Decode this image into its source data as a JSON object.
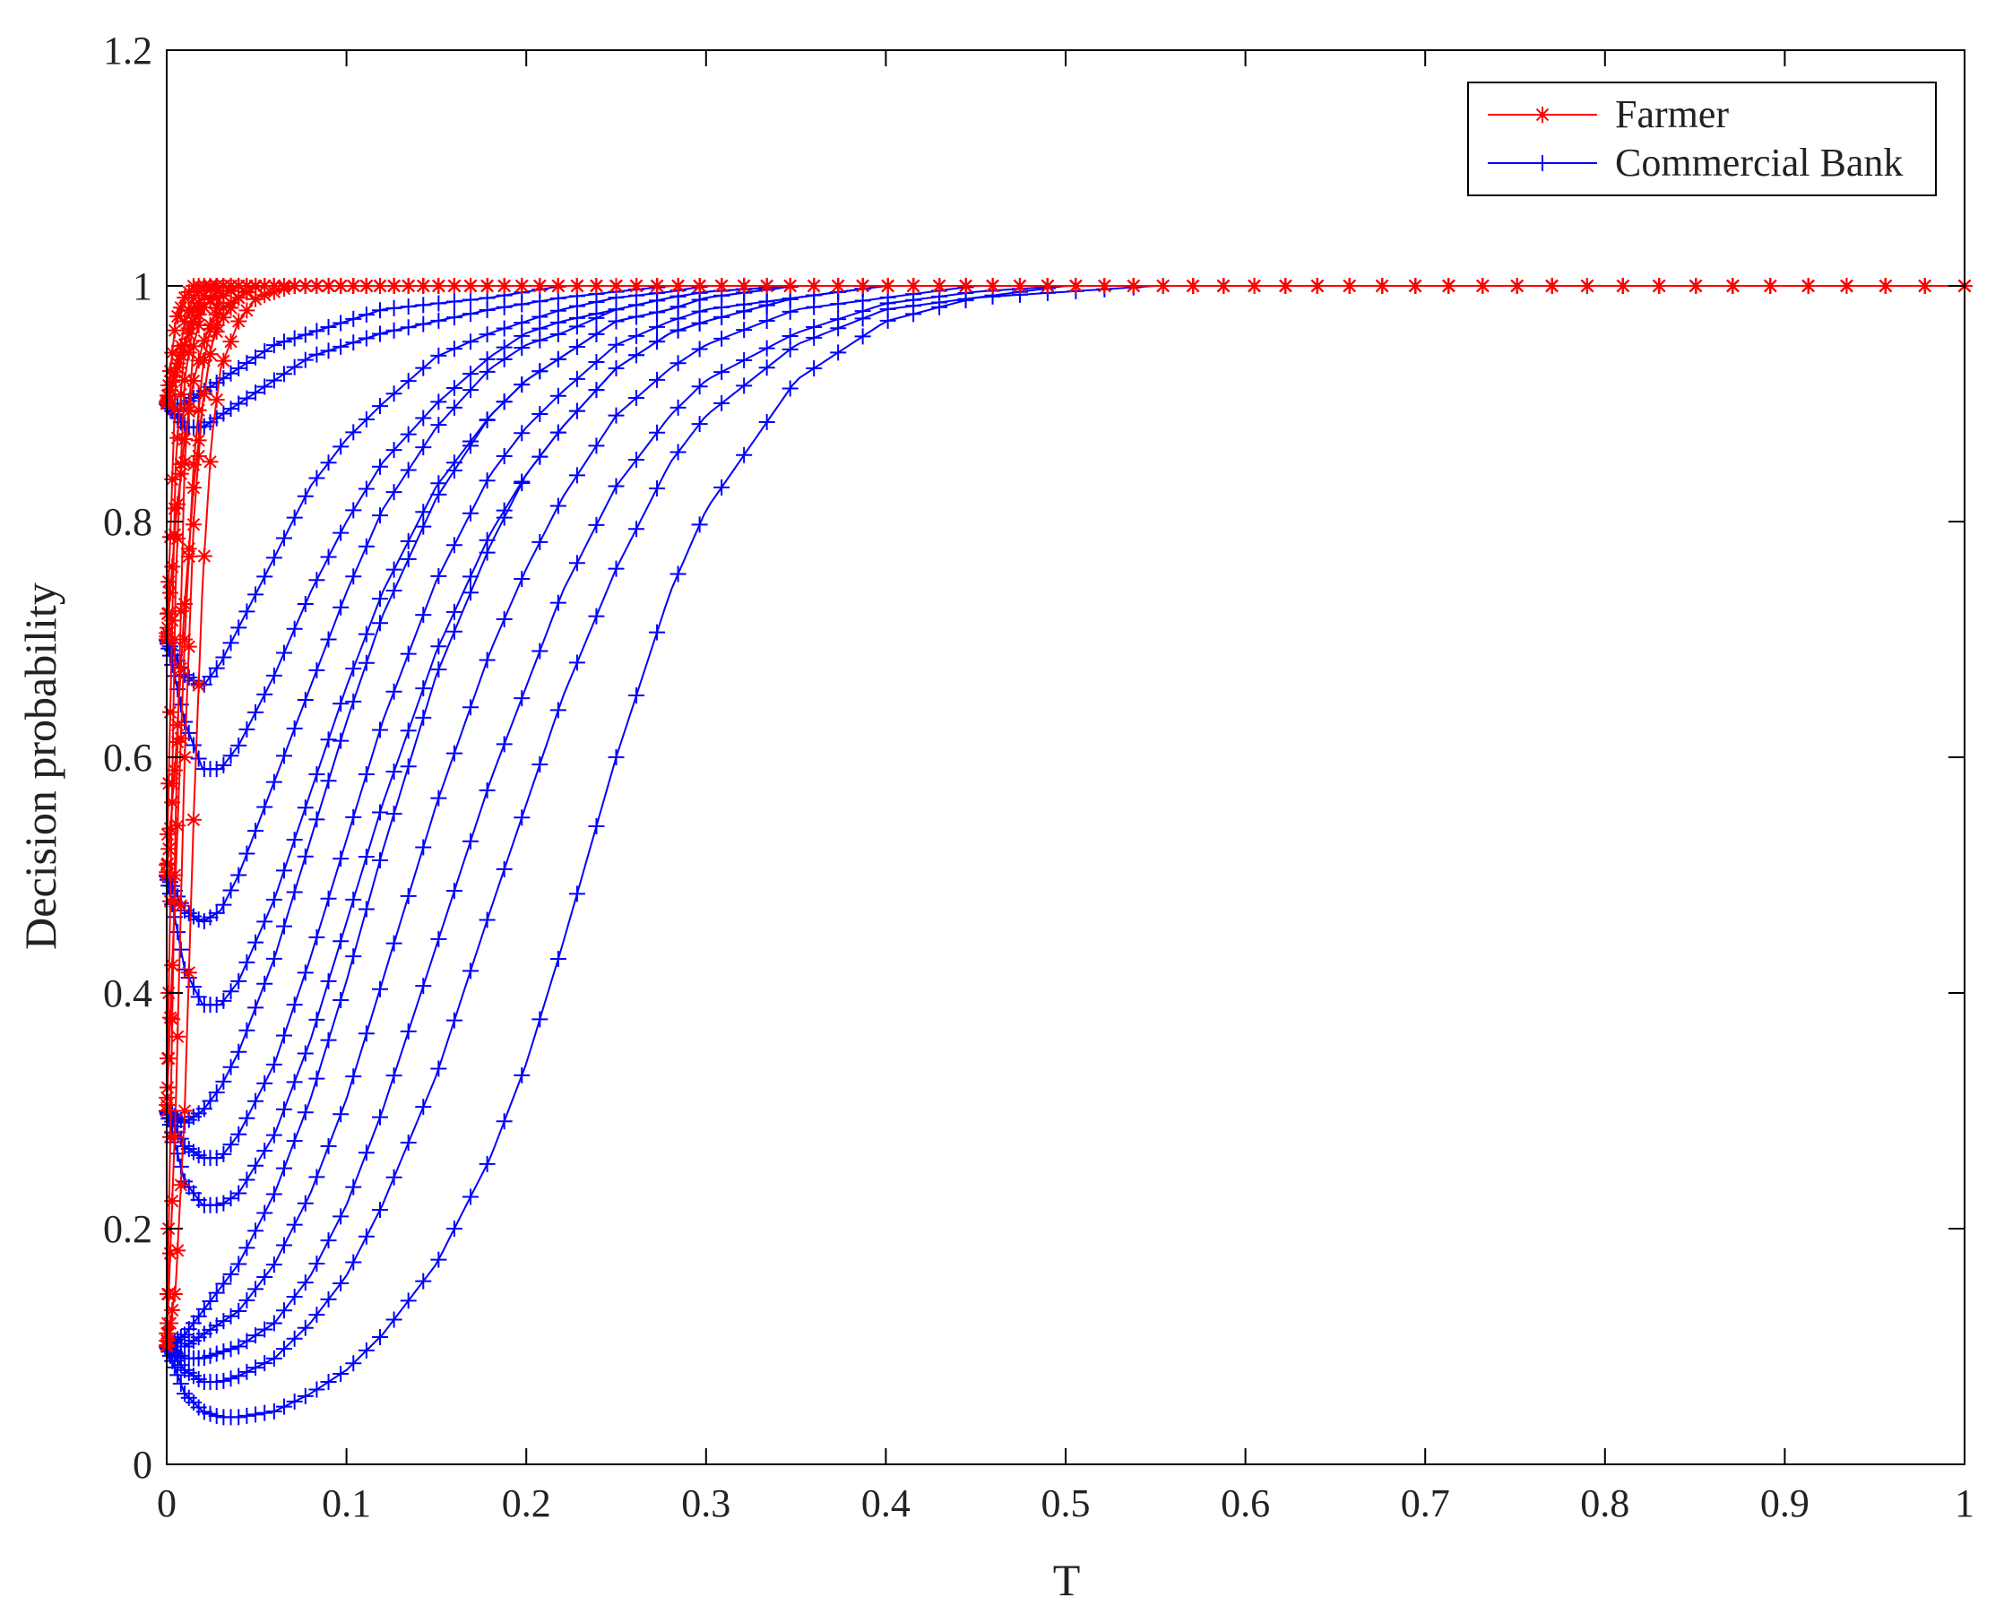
{
  "chart_data": {
    "type": "line",
    "title": "",
    "xlabel": "T",
    "ylabel": "Decision probability",
    "xlim": [
      0,
      1
    ],
    "ylim": [
      0,
      1.2
    ],
    "xticks": [
      "0",
      "0.1",
      "0.2",
      "0.3",
      "0.4",
      "0.5",
      "0.6",
      "0.7",
      "0.8",
      "0.9",
      "1"
    ],
    "yticks": [
      "0",
      "0.2",
      "0.4",
      "0.6",
      "0.8",
      "1",
      "1.2"
    ],
    "grid": false,
    "legend_position": "top-right",
    "series": [
      {
        "name": "Farmer",
        "color": "#ff0000",
        "marker": "asterisk",
        "x": [
          0,
          0.005,
          0.01,
          0.015,
          0.02,
          0.025,
          0.03,
          0.04,
          0.05,
          0.07,
          0.1,
          0.15,
          0.2,
          0.3,
          0.5,
          0.7,
          1.0
        ],
        "curves": [
          [
            0.1,
            0.55,
            0.85,
            0.95,
            0.98,
            0.99,
            1.0,
            1.0,
            1.0,
            1.0,
            1.0,
            1.0,
            1.0,
            1.0,
            1.0,
            1.0,
            1.0
          ],
          [
            0.1,
            0.3,
            0.6,
            0.8,
            0.9,
            0.95,
            0.98,
            0.99,
            1.0,
            1.0,
            1.0,
            1.0,
            1.0,
            1.0,
            1.0,
            1.0,
            1.0
          ],
          [
            0.1,
            0.15,
            0.3,
            0.55,
            0.75,
            0.87,
            0.93,
            0.97,
            0.99,
            1.0,
            1.0,
            1.0,
            1.0,
            1.0,
            1.0,
            1.0,
            1.0
          ],
          [
            0.3,
            0.75,
            0.92,
            0.97,
            0.99,
            1.0,
            1.0,
            1.0,
            1.0,
            1.0,
            1.0,
            1.0,
            1.0,
            1.0,
            1.0,
            1.0,
            1.0
          ],
          [
            0.3,
            0.5,
            0.7,
            0.85,
            0.93,
            0.97,
            0.99,
            1.0,
            1.0,
            1.0,
            1.0,
            1.0,
            1.0,
            1.0,
            1.0,
            1.0,
            1.0
          ],
          [
            0.5,
            0.85,
            0.95,
            0.98,
            0.99,
            1.0,
            1.0,
            1.0,
            1.0,
            1.0,
            1.0,
            1.0,
            1.0,
            1.0,
            1.0,
            1.0,
            1.0
          ],
          [
            0.5,
            0.6,
            0.73,
            0.83,
            0.9,
            0.95,
            0.97,
            0.99,
            1.0,
            1.0,
            1.0,
            1.0,
            1.0,
            1.0,
            1.0,
            1.0,
            1.0
          ],
          [
            0.7,
            0.92,
            0.97,
            0.99,
            1.0,
            1.0,
            1.0,
            1.0,
            1.0,
            1.0,
            1.0,
            1.0,
            1.0,
            1.0,
            1.0,
            1.0,
            1.0
          ],
          [
            0.7,
            0.8,
            0.87,
            0.92,
            0.95,
            0.97,
            0.98,
            0.99,
            1.0,
            1.0,
            1.0,
            1.0,
            1.0,
            1.0,
            1.0,
            1.0,
            1.0
          ],
          [
            0.9,
            0.97,
            0.99,
            1.0,
            1.0,
            1.0,
            1.0,
            1.0,
            1.0,
            1.0,
            1.0,
            1.0,
            1.0,
            1.0,
            1.0,
            1.0,
            1.0
          ],
          [
            0.9,
            0.93,
            0.95,
            0.97,
            0.98,
            0.99,
            0.99,
            1.0,
            1.0,
            1.0,
            1.0,
            1.0,
            1.0,
            1.0,
            1.0,
            1.0,
            1.0
          ]
        ]
      },
      {
        "name": "Commercial Bank",
        "color": "#0000ff",
        "marker": "plus",
        "x": [
          0,
          0.01,
          0.02,
          0.03,
          0.04,
          0.06,
          0.08,
          0.1,
          0.12,
          0.15,
          0.18,
          0.2,
          0.22,
          0.25,
          0.28,
          0.3,
          0.35,
          0.4,
          0.45,
          0.5,
          0.55,
          0.6,
          0.7,
          0.8,
          0.9,
          1.0
        ],
        "curves": [
          [
            0.1,
            0.06,
            0.045,
            0.04,
            0.04,
            0.045,
            0.06,
            0.08,
            0.11,
            0.17,
            0.26,
            0.34,
            0.44,
            0.6,
            0.74,
            0.81,
            0.92,
            0.97,
            0.99,
            0.995,
            1.0,
            1.0,
            1.0,
            1.0,
            1.0,
            1.0
          ],
          [
            0.1,
            0.08,
            0.07,
            0.07,
            0.075,
            0.09,
            0.12,
            0.16,
            0.22,
            0.33,
            0.47,
            0.56,
            0.65,
            0.76,
            0.85,
            0.89,
            0.95,
            0.98,
            0.99,
            1.0,
            1.0,
            1.0,
            1.0,
            1.0,
            1.0,
            1.0
          ],
          [
            0.1,
            0.09,
            0.09,
            0.095,
            0.1,
            0.12,
            0.16,
            0.22,
            0.3,
            0.44,
            0.58,
            0.66,
            0.74,
            0.83,
            0.89,
            0.92,
            0.96,
            0.985,
            0.995,
            1.0,
            1.0,
            1.0,
            1.0,
            1.0,
            1.0,
            1.0
          ],
          [
            0.1,
            0.1,
            0.11,
            0.12,
            0.13,
            0.17,
            0.23,
            0.31,
            0.41,
            0.56,
            0.69,
            0.76,
            0.82,
            0.89,
            0.93,
            0.95,
            0.98,
            0.99,
            1.0,
            1.0,
            1.0,
            1.0,
            1.0,
            1.0,
            1.0,
            1.0
          ],
          [
            0.1,
            0.11,
            0.13,
            0.15,
            0.17,
            0.23,
            0.31,
            0.41,
            0.52,
            0.67,
            0.78,
            0.84,
            0.88,
            0.93,
            0.96,
            0.97,
            0.99,
            1.0,
            1.0,
            1.0,
            1.0,
            1.0,
            1.0,
            1.0,
            1.0,
            1.0
          ],
          [
            0.3,
            0.24,
            0.22,
            0.22,
            0.23,
            0.28,
            0.36,
            0.46,
            0.56,
            0.69,
            0.79,
            0.84,
            0.88,
            0.93,
            0.96,
            0.97,
            0.99,
            1.0,
            1.0,
            1.0,
            1.0,
            1.0,
            1.0,
            1.0,
            1.0,
            1.0
          ],
          [
            0.3,
            0.27,
            0.26,
            0.26,
            0.28,
            0.34,
            0.43,
            0.53,
            0.63,
            0.75,
            0.84,
            0.88,
            0.91,
            0.95,
            0.97,
            0.98,
            0.99,
            1.0,
            1.0,
            1.0,
            1.0,
            1.0,
            1.0,
            1.0,
            1.0,
            1.0
          ],
          [
            0.3,
            0.29,
            0.3,
            0.32,
            0.35,
            0.43,
            0.53,
            0.63,
            0.72,
            0.82,
            0.89,
            0.92,
            0.94,
            0.97,
            0.98,
            0.99,
            1.0,
            1.0,
            1.0,
            1.0,
            1.0,
            1.0,
            1.0,
            1.0,
            1.0,
            1.0
          ],
          [
            0.5,
            0.42,
            0.39,
            0.39,
            0.41,
            0.48,
            0.57,
            0.66,
            0.74,
            0.83,
            0.89,
            0.92,
            0.94,
            0.97,
            0.98,
            0.99,
            1.0,
            1.0,
            1.0,
            1.0,
            1.0,
            1.0,
            1.0,
            1.0,
            1.0,
            1.0
          ],
          [
            0.5,
            0.47,
            0.46,
            0.47,
            0.5,
            0.58,
            0.66,
            0.74,
            0.81,
            0.88,
            0.93,
            0.95,
            0.96,
            0.98,
            0.99,
            0.995,
            1.0,
            1.0,
            1.0,
            1.0,
            1.0,
            1.0,
            1.0,
            1.0,
            1.0,
            1.0
          ],
          [
            0.7,
            0.63,
            0.59,
            0.59,
            0.61,
            0.67,
            0.74,
            0.8,
            0.85,
            0.9,
            0.94,
            0.96,
            0.97,
            0.98,
            0.99,
            0.995,
            1.0,
            1.0,
            1.0,
            1.0,
            1.0,
            1.0,
            1.0,
            1.0,
            1.0,
            1.0
          ],
          [
            0.7,
            0.67,
            0.66,
            0.68,
            0.71,
            0.77,
            0.83,
            0.87,
            0.9,
            0.94,
            0.96,
            0.97,
            0.98,
            0.99,
            0.995,
            1.0,
            1.0,
            1.0,
            1.0,
            1.0,
            1.0,
            1.0,
            1.0,
            1.0,
            1.0,
            1.0
          ],
          [
            0.9,
            0.88,
            0.88,
            0.89,
            0.9,
            0.92,
            0.94,
            0.95,
            0.96,
            0.97,
            0.98,
            0.985,
            0.99,
            0.995,
            1.0,
            1.0,
            1.0,
            1.0,
            1.0,
            1.0,
            1.0,
            1.0,
            1.0,
            1.0,
            1.0,
            1.0
          ],
          [
            0.9,
            0.9,
            0.91,
            0.92,
            0.93,
            0.95,
            0.96,
            0.97,
            0.98,
            0.985,
            0.99,
            0.995,
            1.0,
            1.0,
            1.0,
            1.0,
            1.0,
            1.0,
            1.0,
            1.0,
            1.0,
            1.0,
            1.0,
            1.0,
            1.0,
            1.0
          ]
        ]
      }
    ]
  }
}
